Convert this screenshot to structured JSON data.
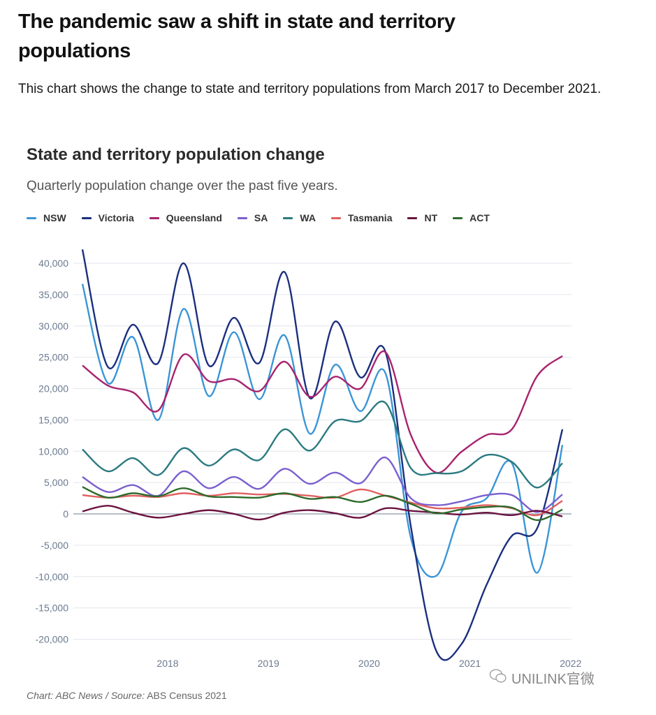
{
  "header": {
    "title": "The pandemic saw a shift in state and territory populations",
    "description": "This chart shows the change to state and territory populations from March 2017 to December 2021."
  },
  "footer": {
    "credit": "Chart: ABC News / Source:",
    "source": "ABS Census 2021"
  },
  "watermark": {
    "text": "UNILINK官微",
    "icon": "wechat-icon"
  },
  "chart_data": {
    "type": "line",
    "title": "State and territory population change",
    "subtitle": "Quarterly population change over the past five years.",
    "xlabel": "",
    "ylabel": "",
    "x": [
      "Mar 2017",
      "Jun 2017",
      "Sep 2017",
      "Dec 2017",
      "Mar 2018",
      "Jun 2018",
      "Sep 2018",
      "Dec 2018",
      "Mar 2019",
      "Jun 2019",
      "Sep 2019",
      "Dec 2019",
      "Mar 2020",
      "Jun 2020",
      "Sep 2020",
      "Dec 2020",
      "Mar 2021",
      "Jun 2021",
      "Sep 2021",
      "Dec 2021"
    ],
    "x_ticks": [
      "2018",
      "2019",
      "2020",
      "2021",
      "2022"
    ],
    "ylim": [
      -22000,
      43000
    ],
    "y_ticks": [
      40000,
      35000,
      30000,
      25000,
      20000,
      15000,
      10000,
      5000,
      0,
      -5000,
      -10000,
      -15000,
      -20000
    ],
    "y_tick_labels": [
      "40,000",
      "35,000",
      "30,000",
      "25,000",
      "20,000",
      "15,000",
      "10,000",
      "5,000",
      "0",
      "-5,000",
      "-10,000",
      "-15,000",
      "-20,000"
    ],
    "grid": true,
    "legend_position": "top",
    "series": [
      {
        "name": "NSW",
        "color": "#3a95d6",
        "values": [
          36700,
          20900,
          28200,
          15000,
          32700,
          18800,
          29000,
          18300,
          28500,
          12800,
          23800,
          16400,
          22400,
          -3800,
          -9900,
          300,
          2500,
          8100,
          -9400,
          11000
        ]
      },
      {
        "name": "Victoria",
        "color": "#1b2f7f",
        "values": [
          42200,
          23500,
          30200,
          24100,
          40000,
          23700,
          31300,
          24100,
          38600,
          18500,
          30700,
          21800,
          25800,
          -2000,
          -21800,
          -20800,
          -11300,
          -3500,
          -2300,
          13500
        ]
      },
      {
        "name": "Queensland",
        "color": "#a8236e",
        "values": [
          23700,
          20500,
          19400,
          16500,
          25400,
          21200,
          21500,
          19600,
          24300,
          18700,
          21900,
          20000,
          25800,
          12600,
          6600,
          9900,
          12600,
          13500,
          22000,
          25200
        ]
      },
      {
        "name": "SA",
        "color": "#7b5fcf",
        "values": [
          5900,
          3500,
          4600,
          2900,
          6800,
          4100,
          5900,
          4000,
          7200,
          4800,
          6600,
          4900,
          9000,
          2500,
          1400,
          2000,
          3000,
          3000,
          300,
          3100
        ]
      },
      {
        "name": "WA",
        "color": "#2a7a80",
        "values": [
          10300,
          6800,
          8900,
          6200,
          10500,
          7700,
          10300,
          8600,
          13500,
          10100,
          14800,
          14800,
          17700,
          7300,
          6500,
          6800,
          9400,
          8300,
          4200,
          8100
        ]
      },
      {
        "name": "Tasmania",
        "color": "#e06060",
        "values": [
          3000,
          2600,
          2900,
          2700,
          3300,
          2900,
          3300,
          3100,
          3200,
          2900,
          2600,
          3900,
          2900,
          1800,
          900,
          1000,
          1400,
          900,
          -200,
          2100
        ]
      },
      {
        "name": "NT",
        "color": "#6b1340",
        "values": [
          400,
          1300,
          200,
          -600,
          0,
          600,
          0,
          -900,
          200,
          600,
          100,
          -600,
          900,
          500,
          200,
          -100,
          200,
          -200,
          500,
          -400
        ]
      },
      {
        "name": "ACT",
        "color": "#2c6b2a",
        "values": [
          4300,
          2600,
          3300,
          2800,
          4100,
          2800,
          2700,
          2600,
          3300,
          2400,
          2700,
          1900,
          2900,
          1600,
          100,
          700,
          1100,
          1000,
          -1000,
          700
        ]
      }
    ]
  }
}
